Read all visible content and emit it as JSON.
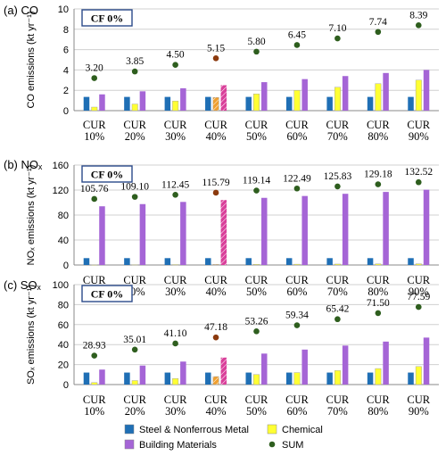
{
  "chart_data": [
    {
      "type": "bar",
      "panel_label": "(a) CO",
      "ylabel": "CO emissions (kt yr⁻¹)",
      "badge": "CF 0%",
      "ylim": [
        0,
        10
      ],
      "yticks": [
        "0",
        "2",
        "4",
        "6",
        "8",
        "10"
      ],
      "categories": [
        [
          "CUR",
          "10%"
        ],
        [
          "CUR",
          "20%"
        ],
        [
          "CUR",
          "30%"
        ],
        [
          "CUR",
          "40%"
        ],
        [
          "CUR",
          "50%"
        ],
        [
          "CUR",
          "60%"
        ],
        [
          "CUR",
          "70%"
        ],
        [
          "CUR",
          "80%"
        ],
        [
          "CUR",
          "90%"
        ]
      ],
      "series": [
        {
          "name": "Steel & Nonferrous Metal",
          "values": [
            1.35,
            1.35,
            1.35,
            1.35,
            1.35,
            1.35,
            1.35,
            1.35,
            1.35
          ]
        },
        {
          "name": "Chemical",
          "values": [
            0.35,
            0.65,
            0.95,
            1.3,
            1.65,
            2.0,
            2.3,
            2.65,
            3.0
          ]
        },
        {
          "name": "Building Materials",
          "values": [
            1.6,
            1.9,
            2.2,
            2.5,
            2.8,
            3.1,
            3.4,
            3.7,
            4.0
          ]
        },
        {
          "name": "SUM",
          "values": [
            3.2,
            3.85,
            4.5,
            5.15,
            5.8,
            6.45,
            7.1,
            7.74,
            8.39
          ]
        }
      ],
      "labels": [
        "3.20",
        "3.85",
        "4.50",
        "5.15",
        "5.80",
        "6.45",
        "7.10",
        "7.74",
        "8.39"
      ]
    },
    {
      "type": "bar",
      "panel_label": "(b) NOₓ",
      "ylabel": "NOₓ emissions (kt yr⁻¹)",
      "badge": "CF 0%",
      "ylim": [
        0,
        160
      ],
      "yticks": [
        "0",
        "40",
        "80",
        "120",
        "160"
      ],
      "categories": [
        [
          "CUR",
          "10%"
        ],
        [
          "CUR",
          "20%"
        ],
        [
          "CUR",
          "30%"
        ],
        [
          "CUR",
          "40%"
        ],
        [
          "CUR",
          "50%"
        ],
        [
          "CUR",
          "60%"
        ],
        [
          "CUR",
          "70%"
        ],
        [
          "CUR",
          "80%"
        ],
        [
          "CUR",
          "90%"
        ]
      ],
      "series": [
        {
          "name": "Steel & Nonferrous Metal",
          "values": [
            11,
            11,
            11,
            11,
            11,
            11,
            11,
            11,
            11
          ]
        },
        {
          "name": "Chemical",
          "values": [
            0.3,
            0.5,
            0.7,
            0.9,
            1.1,
            1.3,
            1.5,
            1.7,
            1.9
          ]
        },
        {
          "name": "Building Materials",
          "values": [
            94,
            97.5,
            101,
            104,
            107.5,
            110.5,
            114,
            117,
            120.5
          ]
        },
        {
          "name": "SUM",
          "values": [
            105.76,
            109.1,
            112.45,
            115.79,
            119.14,
            122.49,
            125.83,
            129.18,
            132.52
          ]
        }
      ],
      "labels": [
        "105.76",
        "109.10",
        "112.45",
        "115.79",
        "119.14",
        "122.49",
        "125.83",
        "129.18",
        "132.52"
      ]
    },
    {
      "type": "bar",
      "panel_label": "(c) SOₓ",
      "ylabel": "SOₓ emissions (kt yr⁻¹)",
      "badge": "CF 0%",
      "ylim": [
        0,
        100
      ],
      "yticks": [
        "0",
        "20",
        "40",
        "60",
        "80",
        "100"
      ],
      "categories": [
        [
          "CUR",
          "10%"
        ],
        [
          "CUR",
          "20%"
        ],
        [
          "CUR",
          "30%"
        ],
        [
          "CUR",
          "40%"
        ],
        [
          "CUR",
          "50%"
        ],
        [
          "CUR",
          "60%"
        ],
        [
          "CUR",
          "70%"
        ],
        [
          "CUR",
          "80%"
        ],
        [
          "CUR",
          "90%"
        ]
      ],
      "series": [
        {
          "name": "Steel & Nonferrous Metal",
          "values": [
            12,
            12,
            12,
            12,
            12,
            12,
            12,
            12,
            12
          ]
        },
        {
          "name": "Chemical",
          "values": [
            2,
            4,
            6,
            8,
            10,
            12,
            14,
            16,
            18
          ]
        },
        {
          "name": "Building Materials",
          "values": [
            15,
            19,
            23,
            27,
            31,
            35,
            39,
            43,
            47
          ]
        },
        {
          "name": "SUM",
          "values": [
            28.93,
            35.01,
            41.1,
            47.18,
            53.26,
            59.34,
            65.42,
            71.5,
            77.59
          ]
        }
      ],
      "labels": [
        "28.93",
        "35.01",
        "41.10",
        "47.18",
        "53.26",
        "59.34",
        "65.42",
        "71.50",
        "77.59"
      ]
    }
  ],
  "colors": {
    "steel": "#1f6fb5",
    "chemical": "#ffff33",
    "building": "#a565d6",
    "sum": "#2e5e1e",
    "highlight_building": "#d9409a",
    "highlight_chemical": "#f0a030",
    "highlight_sum": "#8b3a0e",
    "badge_border": "#2b4a8a"
  },
  "highlight_index": 3,
  "legend": {
    "items": [
      {
        "name": "Steel & Nonferrous Metal",
        "kind": "steel"
      },
      {
        "name": "Chemical",
        "kind": "chemical"
      },
      {
        "name": "Building Materials",
        "kind": "building"
      },
      {
        "name": "SUM",
        "kind": "sum"
      }
    ]
  }
}
